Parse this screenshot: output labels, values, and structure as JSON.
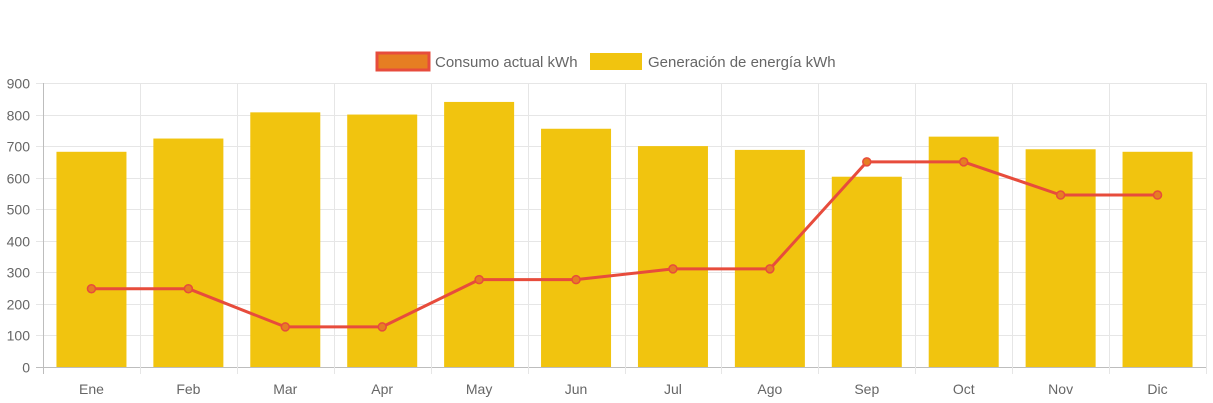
{
  "chart_data": {
    "type": "bar",
    "categories": [
      "Ene",
      "Feb",
      "Mar",
      "Apr",
      "May",
      "Jun",
      "Jul",
      "Ago",
      "Sep",
      "Oct",
      "Nov",
      "Dic"
    ],
    "series": [
      {
        "name": "Consumo actual kWh",
        "type": "line",
        "values": [
          248,
          248,
          127,
          127,
          277,
          277,
          311,
          311,
          650,
          650,
          545,
          545
        ],
        "color": "#E74C3C",
        "point_fill": "#E67E22"
      },
      {
        "name": "Generación de energía kWh",
        "type": "bar",
        "values": [
          682,
          724,
          807,
          800,
          840,
          755,
          700,
          688,
          603,
          730,
          690,
          682
        ],
        "color": "#F1C40F"
      }
    ],
    "ylim": [
      0,
      900
    ],
    "yticks": [
      0,
      100,
      200,
      300,
      400,
      500,
      600,
      700,
      800,
      900
    ],
    "grid": true,
    "legend_position": "top-center"
  }
}
